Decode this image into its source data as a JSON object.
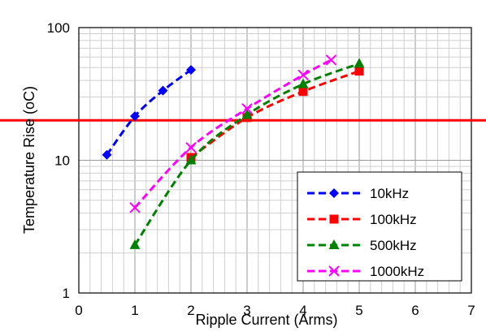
{
  "chart_data": {
    "type": "line",
    "title": "",
    "xlabel": "Ripple Current (Arms)",
    "ylabel": "Temperature Rise (oC)",
    "xlim": [
      0,
      7
    ],
    "ylim": [
      1,
      100
    ],
    "y_scale": "log",
    "x_ticks": [
      "0",
      "1",
      "2",
      "3",
      "4",
      "5",
      "6",
      "7"
    ],
    "y_ticks": [
      "1",
      "10",
      "100"
    ],
    "grid": true,
    "legend_position": "bottom-right",
    "reference_line": {
      "y": 20,
      "color": "#ff0000"
    },
    "series": [
      {
        "name": "10kHz",
        "color": "#0000ff",
        "marker": "diamond",
        "x": [
          0.5,
          1.0,
          1.5,
          2.0
        ],
        "y": [
          11,
          21.5,
          33.5,
          48
        ]
      },
      {
        "name": "100kHz",
        "color": "#ff0000",
        "marker": "square",
        "x": [
          2.0,
          3.0,
          4.0,
          5.0
        ],
        "y": [
          10.5,
          21,
          33,
          47
        ]
      },
      {
        "name": "500kHz",
        "color": "#008000",
        "marker": "triangle",
        "x": [
          1.0,
          2.0,
          3.0,
          4.0,
          5.0
        ],
        "y": [
          2.3,
          10,
          22,
          37.5,
          53.5
        ]
      },
      {
        "name": "1000kHz",
        "color": "#ff00ff",
        "marker": "x",
        "x": [
          1.0,
          2.0,
          3.0,
          4.0,
          4.5
        ],
        "y": [
          4.4,
          12.5,
          24.5,
          44,
          57
        ]
      }
    ]
  }
}
